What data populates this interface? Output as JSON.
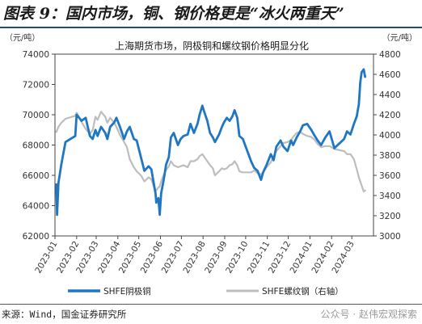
{
  "figure": {
    "title": "图表 9：国内市场，铜、钢价格更是“冰火两重天”",
    "source": "来源：Wind，国金证券研究所",
    "watermark": "公众号 · 赵伟宏观探索"
  },
  "chart_data": {
    "type": "line",
    "title": "上海期货市场，阴极铜和螺纹钢价格明显分化",
    "y_left_unit": "（元/吨）",
    "y_right_unit": "（元/吨）",
    "y_left_range": [
      62000,
      74000
    ],
    "y_right_range": [
      3000,
      4800
    ],
    "y_left_ticks": [
      "62000",
      "64000",
      "66000",
      "68000",
      "70000",
      "72000",
      "74000"
    ],
    "y_right_ticks": [
      "3000",
      "3200",
      "3400",
      "3600",
      "3800",
      "4000",
      "4200",
      "4400",
      "4600",
      "4800"
    ],
    "x_range": [
      "2023-01",
      "2024-03"
    ],
    "x_ticks": [
      "2023-01",
      "2023-02",
      "2023-03",
      "2023-04",
      "2023-05",
      "2023-06",
      "2023-07",
      "2023-08",
      "2023-09",
      "2023-10",
      "2023-11",
      "2023-12",
      "2024-01",
      "2024-02",
      "2024-03"
    ],
    "legend_position": "bottom",
    "grid": false,
    "series": [
      {
        "name": "SHFE阴极铜",
        "axis": "left",
        "color": "#1f77c4",
        "points": [
          [
            "2023-01-03",
            65400
          ],
          [
            "2023-01-04",
            63400
          ],
          [
            "2023-01-06",
            65500
          ],
          [
            "2023-01-10",
            66700
          ],
          [
            "2023-01-16",
            68200
          ],
          [
            "2023-01-30",
            68600
          ],
          [
            "2023-02-01",
            70000
          ],
          [
            "2023-02-08",
            69600
          ],
          [
            "2023-02-14",
            69800
          ],
          [
            "2023-02-20",
            68600
          ],
          [
            "2023-02-24",
            68400
          ],
          [
            "2023-02-28",
            69000
          ],
          [
            "2023-03-03",
            68600
          ],
          [
            "2023-03-08",
            69200
          ],
          [
            "2023-03-14",
            68800
          ],
          [
            "2023-03-17",
            68400
          ],
          [
            "2023-03-21",
            69200
          ],
          [
            "2023-03-27",
            69500
          ],
          [
            "2023-03-30",
            69800
          ],
          [
            "2023-04-04",
            69200
          ],
          [
            "2023-04-10",
            68400
          ],
          [
            "2023-04-14",
            68900
          ],
          [
            "2023-04-18",
            69200
          ],
          [
            "2023-04-24",
            68400
          ],
          [
            "2023-04-28",
            68300
          ],
          [
            "2023-05-04",
            67200
          ],
          [
            "2023-05-09",
            66300
          ],
          [
            "2023-05-15",
            66600
          ],
          [
            "2023-05-19",
            66400
          ],
          [
            "2023-05-25",
            64800
          ],
          [
            "2023-05-26",
            64200
          ],
          [
            "2023-05-29",
            64500
          ],
          [
            "2023-05-31",
            63400
          ],
          [
            "2023-06-02",
            64800
          ],
          [
            "2023-06-06",
            65800
          ],
          [
            "2023-06-09",
            66700
          ],
          [
            "2023-06-13",
            67200
          ],
          [
            "2023-06-16",
            68500
          ],
          [
            "2023-06-20",
            68800
          ],
          [
            "2023-06-26",
            68000
          ],
          [
            "2023-06-30",
            68400
          ],
          [
            "2023-07-04",
            68600
          ],
          [
            "2023-07-10",
            68700
          ],
          [
            "2023-07-14",
            69400
          ],
          [
            "2023-07-19",
            68800
          ],
          [
            "2023-07-24",
            69400
          ],
          [
            "2023-07-27",
            70000
          ],
          [
            "2023-07-31",
            70600
          ],
          [
            "2023-08-02",
            70300
          ],
          [
            "2023-08-07",
            69600
          ],
          [
            "2023-08-11",
            68800
          ],
          [
            "2023-08-15",
            68500
          ],
          [
            "2023-08-18",
            68200
          ],
          [
            "2023-08-24",
            68700
          ],
          [
            "2023-08-28",
            69200
          ],
          [
            "2023-08-31",
            69500
          ],
          [
            "2023-09-04",
            69800
          ],
          [
            "2023-09-08",
            69600
          ],
          [
            "2023-09-12",
            69900
          ],
          [
            "2023-09-15",
            70300
          ],
          [
            "2023-09-19",
            69800
          ],
          [
            "2023-09-22",
            68600
          ],
          [
            "2023-09-27",
            68400
          ],
          [
            "2023-10-09",
            66900
          ],
          [
            "2023-10-13",
            66500
          ],
          [
            "2023-10-18",
            66300
          ],
          [
            "2023-10-23",
            65700
          ],
          [
            "2023-10-26",
            66200
          ],
          [
            "2023-10-31",
            66700
          ],
          [
            "2023-11-06",
            67400
          ],
          [
            "2023-11-10",
            67000
          ],
          [
            "2023-11-14",
            67900
          ],
          [
            "2023-11-20",
            68300
          ],
          [
            "2023-11-24",
            67900
          ],
          [
            "2023-11-30",
            67600
          ],
          [
            "2023-12-05",
            68300
          ],
          [
            "2023-12-08",
            68000
          ],
          [
            "2023-12-13",
            68500
          ],
          [
            "2023-12-18",
            68900
          ],
          [
            "2023-12-22",
            69300
          ],
          [
            "2023-12-28",
            69400
          ],
          [
            "2024-01-03",
            69000
          ],
          [
            "2024-01-08",
            68600
          ],
          [
            "2024-01-12",
            68300
          ],
          [
            "2024-01-17",
            68000
          ],
          [
            "2024-01-23",
            68500
          ],
          [
            "2024-01-29",
            68900
          ],
          [
            "2024-02-05",
            67800
          ],
          [
            "2024-02-19",
            68400
          ],
          [
            "2024-02-23",
            68900
          ],
          [
            "2024-02-28",
            68700
          ],
          [
            "2024-03-04",
            69400
          ],
          [
            "2024-03-08",
            69900
          ],
          [
            "2024-03-11",
            70700
          ],
          [
            "2024-03-13",
            72100
          ],
          [
            "2024-03-15",
            72800
          ],
          [
            "2024-03-18",
            73000
          ],
          [
            "2024-03-20",
            72500
          ]
        ]
      },
      {
        "name": "SHFE螺纹钢（右轴）",
        "axis": "right",
        "color": "#bdbdbd",
        "points": [
          [
            "2023-01-03",
            4030
          ],
          [
            "2023-01-06",
            4080
          ],
          [
            "2023-01-10",
            4120
          ],
          [
            "2023-01-16",
            4160
          ],
          [
            "2023-01-30",
            4190
          ],
          [
            "2023-02-01",
            4220
          ],
          [
            "2023-02-08",
            4130
          ],
          [
            "2023-02-14",
            4060
          ],
          [
            "2023-02-20",
            4010
          ],
          [
            "2023-02-24",
            4050
          ],
          [
            "2023-02-28",
            4180
          ],
          [
            "2023-03-03",
            4150
          ],
          [
            "2023-03-08",
            4230
          ],
          [
            "2023-03-14",
            4180
          ],
          [
            "2023-03-17",
            4120
          ],
          [
            "2023-03-21",
            4170
          ],
          [
            "2023-03-27",
            4120
          ],
          [
            "2023-03-30",
            4080
          ],
          [
            "2023-04-04",
            4000
          ],
          [
            "2023-04-10",
            3930
          ],
          [
            "2023-04-14",
            3880
          ],
          [
            "2023-04-18",
            3760
          ],
          [
            "2023-04-24",
            3680
          ],
          [
            "2023-04-28",
            3640
          ],
          [
            "2023-05-04",
            3600
          ],
          [
            "2023-05-09",
            3540
          ],
          [
            "2023-05-15",
            3580
          ],
          [
            "2023-05-19",
            3560
          ],
          [
            "2023-05-25",
            3440
          ],
          [
            "2023-05-29",
            3480
          ],
          [
            "2023-05-31",
            3490
          ],
          [
            "2023-06-02",
            3540
          ],
          [
            "2023-06-06",
            3610
          ],
          [
            "2023-06-09",
            3650
          ],
          [
            "2023-06-13",
            3690
          ],
          [
            "2023-06-16",
            3740
          ],
          [
            "2023-06-20",
            3700
          ],
          [
            "2023-06-26",
            3680
          ],
          [
            "2023-06-30",
            3690
          ],
          [
            "2023-07-04",
            3700
          ],
          [
            "2023-07-10",
            3680
          ],
          [
            "2023-07-14",
            3740
          ],
          [
            "2023-07-19",
            3740
          ],
          [
            "2023-07-24",
            3760
          ],
          [
            "2023-07-27",
            3790
          ],
          [
            "2023-07-31",
            3810
          ],
          [
            "2023-08-02",
            3790
          ],
          [
            "2023-08-07",
            3740
          ],
          [
            "2023-08-11",
            3700
          ],
          [
            "2023-08-15",
            3670
          ],
          [
            "2023-08-18",
            3600
          ],
          [
            "2023-08-24",
            3640
          ],
          [
            "2023-08-28",
            3670
          ],
          [
            "2023-08-31",
            3660
          ],
          [
            "2023-09-04",
            3670
          ],
          [
            "2023-09-08",
            3700
          ],
          [
            "2023-09-12",
            3710
          ],
          [
            "2023-09-15",
            3740
          ],
          [
            "2023-09-19",
            3700
          ],
          [
            "2023-09-22",
            3640
          ],
          [
            "2023-09-27",
            3630
          ],
          [
            "2023-10-09",
            3630
          ],
          [
            "2023-10-13",
            3650
          ],
          [
            "2023-10-18",
            3620
          ],
          [
            "2023-10-23",
            3610
          ],
          [
            "2023-10-26",
            3630
          ],
          [
            "2023-10-31",
            3680
          ],
          [
            "2023-11-06",
            3730
          ],
          [
            "2023-11-10",
            3790
          ],
          [
            "2023-11-14",
            3840
          ],
          [
            "2023-11-20",
            3890
          ],
          [
            "2023-11-24",
            3920
          ],
          [
            "2023-11-30",
            3930
          ],
          [
            "2023-12-05",
            3950
          ],
          [
            "2023-12-08",
            3980
          ],
          [
            "2023-12-13",
            4020
          ],
          [
            "2023-12-18",
            4030
          ],
          [
            "2023-12-22",
            4010
          ],
          [
            "2023-12-28",
            3990
          ],
          [
            "2024-01-03",
            3980
          ],
          [
            "2024-01-08",
            3950
          ],
          [
            "2024-01-12",
            3910
          ],
          [
            "2024-01-17",
            3880
          ],
          [
            "2024-01-23",
            3890
          ],
          [
            "2024-01-29",
            3890
          ],
          [
            "2024-02-05",
            3860
          ],
          [
            "2024-02-19",
            3840
          ],
          [
            "2024-02-23",
            3810
          ],
          [
            "2024-02-28",
            3810
          ],
          [
            "2024-03-04",
            3760
          ],
          [
            "2024-03-08",
            3660
          ],
          [
            "2024-03-11",
            3580
          ],
          [
            "2024-03-13",
            3540
          ],
          [
            "2024-03-15",
            3500
          ],
          [
            "2024-03-18",
            3440
          ],
          [
            "2024-03-20",
            3450
          ]
        ]
      }
    ]
  }
}
